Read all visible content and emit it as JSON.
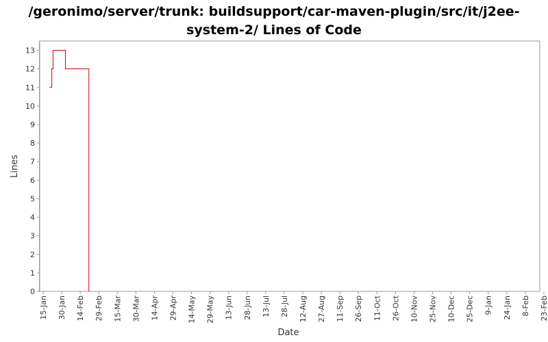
{
  "chart_data": {
    "type": "line",
    "title_line1": "/geronimo/server/trunk: buildsupport/car-maven-plugin/src/it/j2ee-",
    "title_line2": "system-2/ Lines of Code",
    "xlabel": "Date",
    "ylabel": "Lines",
    "ylim": [
      0,
      13.5
    ],
    "y_ticks": [
      "0",
      "1",
      "2",
      "3",
      "4",
      "5",
      "6",
      "7",
      "8",
      "9",
      "10",
      "11",
      "12",
      "13"
    ],
    "x_ticks": [
      "15-Jan",
      "30-Jan",
      "14-Feb",
      "29-Feb",
      "15-Mar",
      "30-Mar",
      "14-Apr",
      "29-Apr",
      "14-May",
      "29-May",
      "13-Jun",
      "28-Jun",
      "13-Jul",
      "28-Jul",
      "12-Aug",
      "27-Aug",
      "11-Sep",
      "26-Sep",
      "11-Oct",
      "26-Oct",
      "10-Nov",
      "25-Nov",
      "10-Dec",
      "25-Dec",
      "9-Jan",
      "24-Jan",
      "8-Feb",
      "23-Feb"
    ],
    "series": [
      {
        "color": "#cc0000",
        "step": true,
        "points": [
          {
            "x": "20-Jan",
            "y": 11
          },
          {
            "x": "22-Jan",
            "y": 12
          },
          {
            "x": "23-Jan",
            "y": 13
          },
          {
            "x": "2-Feb",
            "y": 12
          },
          {
            "x": "20-Feb",
            "y": 12
          },
          {
            "x": "21-Feb",
            "y": 0
          }
        ]
      }
    ],
    "grid": false
  }
}
